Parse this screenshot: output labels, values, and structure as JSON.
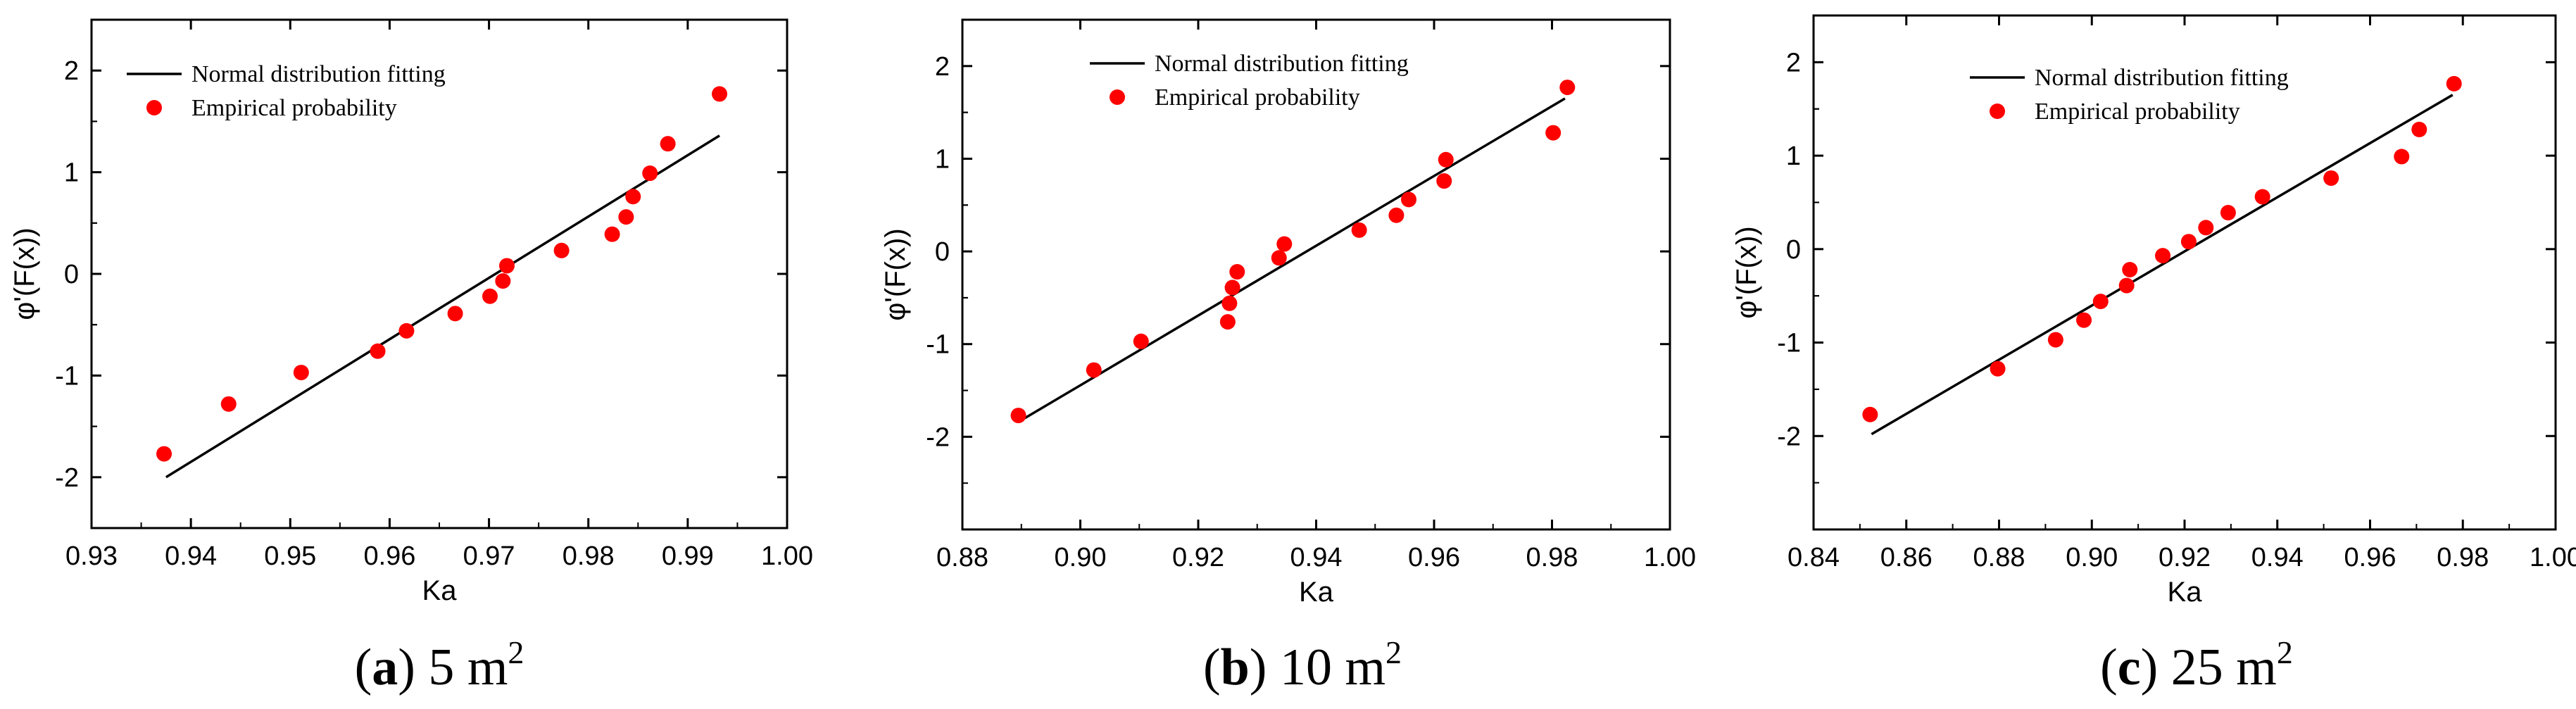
{
  "chart_data": [
    {
      "type": "scatter",
      "caption": {
        "letter": "a",
        "text": "5 m",
        "sup": "2"
      },
      "xlabel": "Ka",
      "ylabel": "φ'(F(x))",
      "xlim": [
        0.93,
        1.0
      ],
      "ylim": [
        -2.5,
        2.5
      ],
      "xticks": [
        "0.93",
        "0.94",
        "0.95",
        "0.96",
        "0.97",
        "0.98",
        "0.99",
        "1.00"
      ],
      "yticks": [
        "-2",
        "-1",
        "0",
        "1",
        "2"
      ],
      "legend": {
        "position": "top-left",
        "line_label": "Normal distribution fitting",
        "points_label": "Empirical probability"
      },
      "fit_line": {
        "x": [
          0.9375,
          0.9932
        ],
        "y": [
          -2.0,
          1.36
        ]
      },
      "points": {
        "x": [
          0.9373,
          0.9438,
          0.9511,
          0.9588,
          0.9617,
          0.9666,
          0.9701,
          0.9714,
          0.9718,
          0.9773,
          0.9824,
          0.9838,
          0.9845,
          0.9862,
          0.988,
          0.9932
        ],
        "y": [
          -1.77,
          -1.28,
          -0.97,
          -0.76,
          -0.56,
          -0.39,
          -0.22,
          -0.07,
          0.08,
          0.23,
          0.39,
          0.56,
          0.76,
          0.99,
          1.28,
          1.77
        ]
      }
    },
    {
      "type": "scatter",
      "caption": {
        "letter": "b",
        "text": "10 m",
        "sup": "2"
      },
      "xlabel": "Ka",
      "ylabel": "φ'(F(x))",
      "xlim": [
        0.88,
        1.0
      ],
      "ylim": [
        -3.0,
        2.5
      ],
      "xticks": [
        "0.88",
        "0.90",
        "0.92",
        "0.94",
        "0.96",
        "0.98",
        "1.00"
      ],
      "yticks": [
        "-2",
        "-1",
        "0",
        "1",
        "2"
      ],
      "legend": {
        "position": "top-center",
        "line_label": "Normal distribution fitting",
        "points_label": "Empirical probability"
      },
      "fit_line": {
        "x": [
          0.8895,
          0.9822
        ],
        "y": [
          -1.84,
          1.65
        ]
      },
      "points": {
        "x": [
          0.8895,
          0.9023,
          0.9103,
          0.925,
          0.9253,
          0.9258,
          0.9266,
          0.9337,
          0.9346,
          0.9473,
          0.9536,
          0.9557,
          0.9617,
          0.962,
          0.9802,
          0.9826
        ],
        "y": [
          -1.77,
          -1.28,
          -0.97,
          -0.76,
          -0.56,
          -0.39,
          -0.22,
          -0.07,
          0.08,
          0.23,
          0.39,
          0.56,
          0.76,
          0.99,
          1.28,
          1.77
        ]
      }
    },
    {
      "type": "scatter",
      "caption": {
        "letter": "c",
        "text": "25 m",
        "sup": "2"
      },
      "xlabel": "Ka",
      "ylabel": "φ'(F(x))",
      "xlim": [
        0.84,
        1.0
      ],
      "ylim": [
        -3.0,
        2.5
      ],
      "xticks": [
        "0.84",
        "0.86",
        "0.88",
        "0.90",
        "0.92",
        "0.94",
        "0.96",
        "0.98",
        "1.00"
      ],
      "yticks": [
        "-2",
        "-1",
        "0",
        "1",
        "2"
      ],
      "legend": {
        "position": "top-center",
        "line_label": "Normal distribution fitting",
        "points_label": "Empirical probability"
      },
      "fit_line": {
        "x": [
          0.8525,
          0.9778
        ],
        "y": [
          -1.98,
          1.65
        ]
      },
      "points": {
        "x": [
          0.8522,
          0.8797,
          0.8922,
          0.8983,
          0.9019,
          0.9075,
          0.9082,
          0.9153,
          0.9209,
          0.9246,
          0.9294,
          0.9368,
          0.9516,
          0.9668,
          0.9706,
          0.9781
        ],
        "y": [
          -1.77,
          -1.28,
          -0.97,
          -0.76,
          -0.56,
          -0.39,
          -0.22,
          -0.07,
          0.08,
          0.23,
          0.39,
          0.56,
          0.76,
          0.99,
          1.28,
          1.77
        ]
      }
    }
  ],
  "colors": {
    "points": "#ff0000",
    "line": "#000000",
    "axes": "#000000"
  }
}
